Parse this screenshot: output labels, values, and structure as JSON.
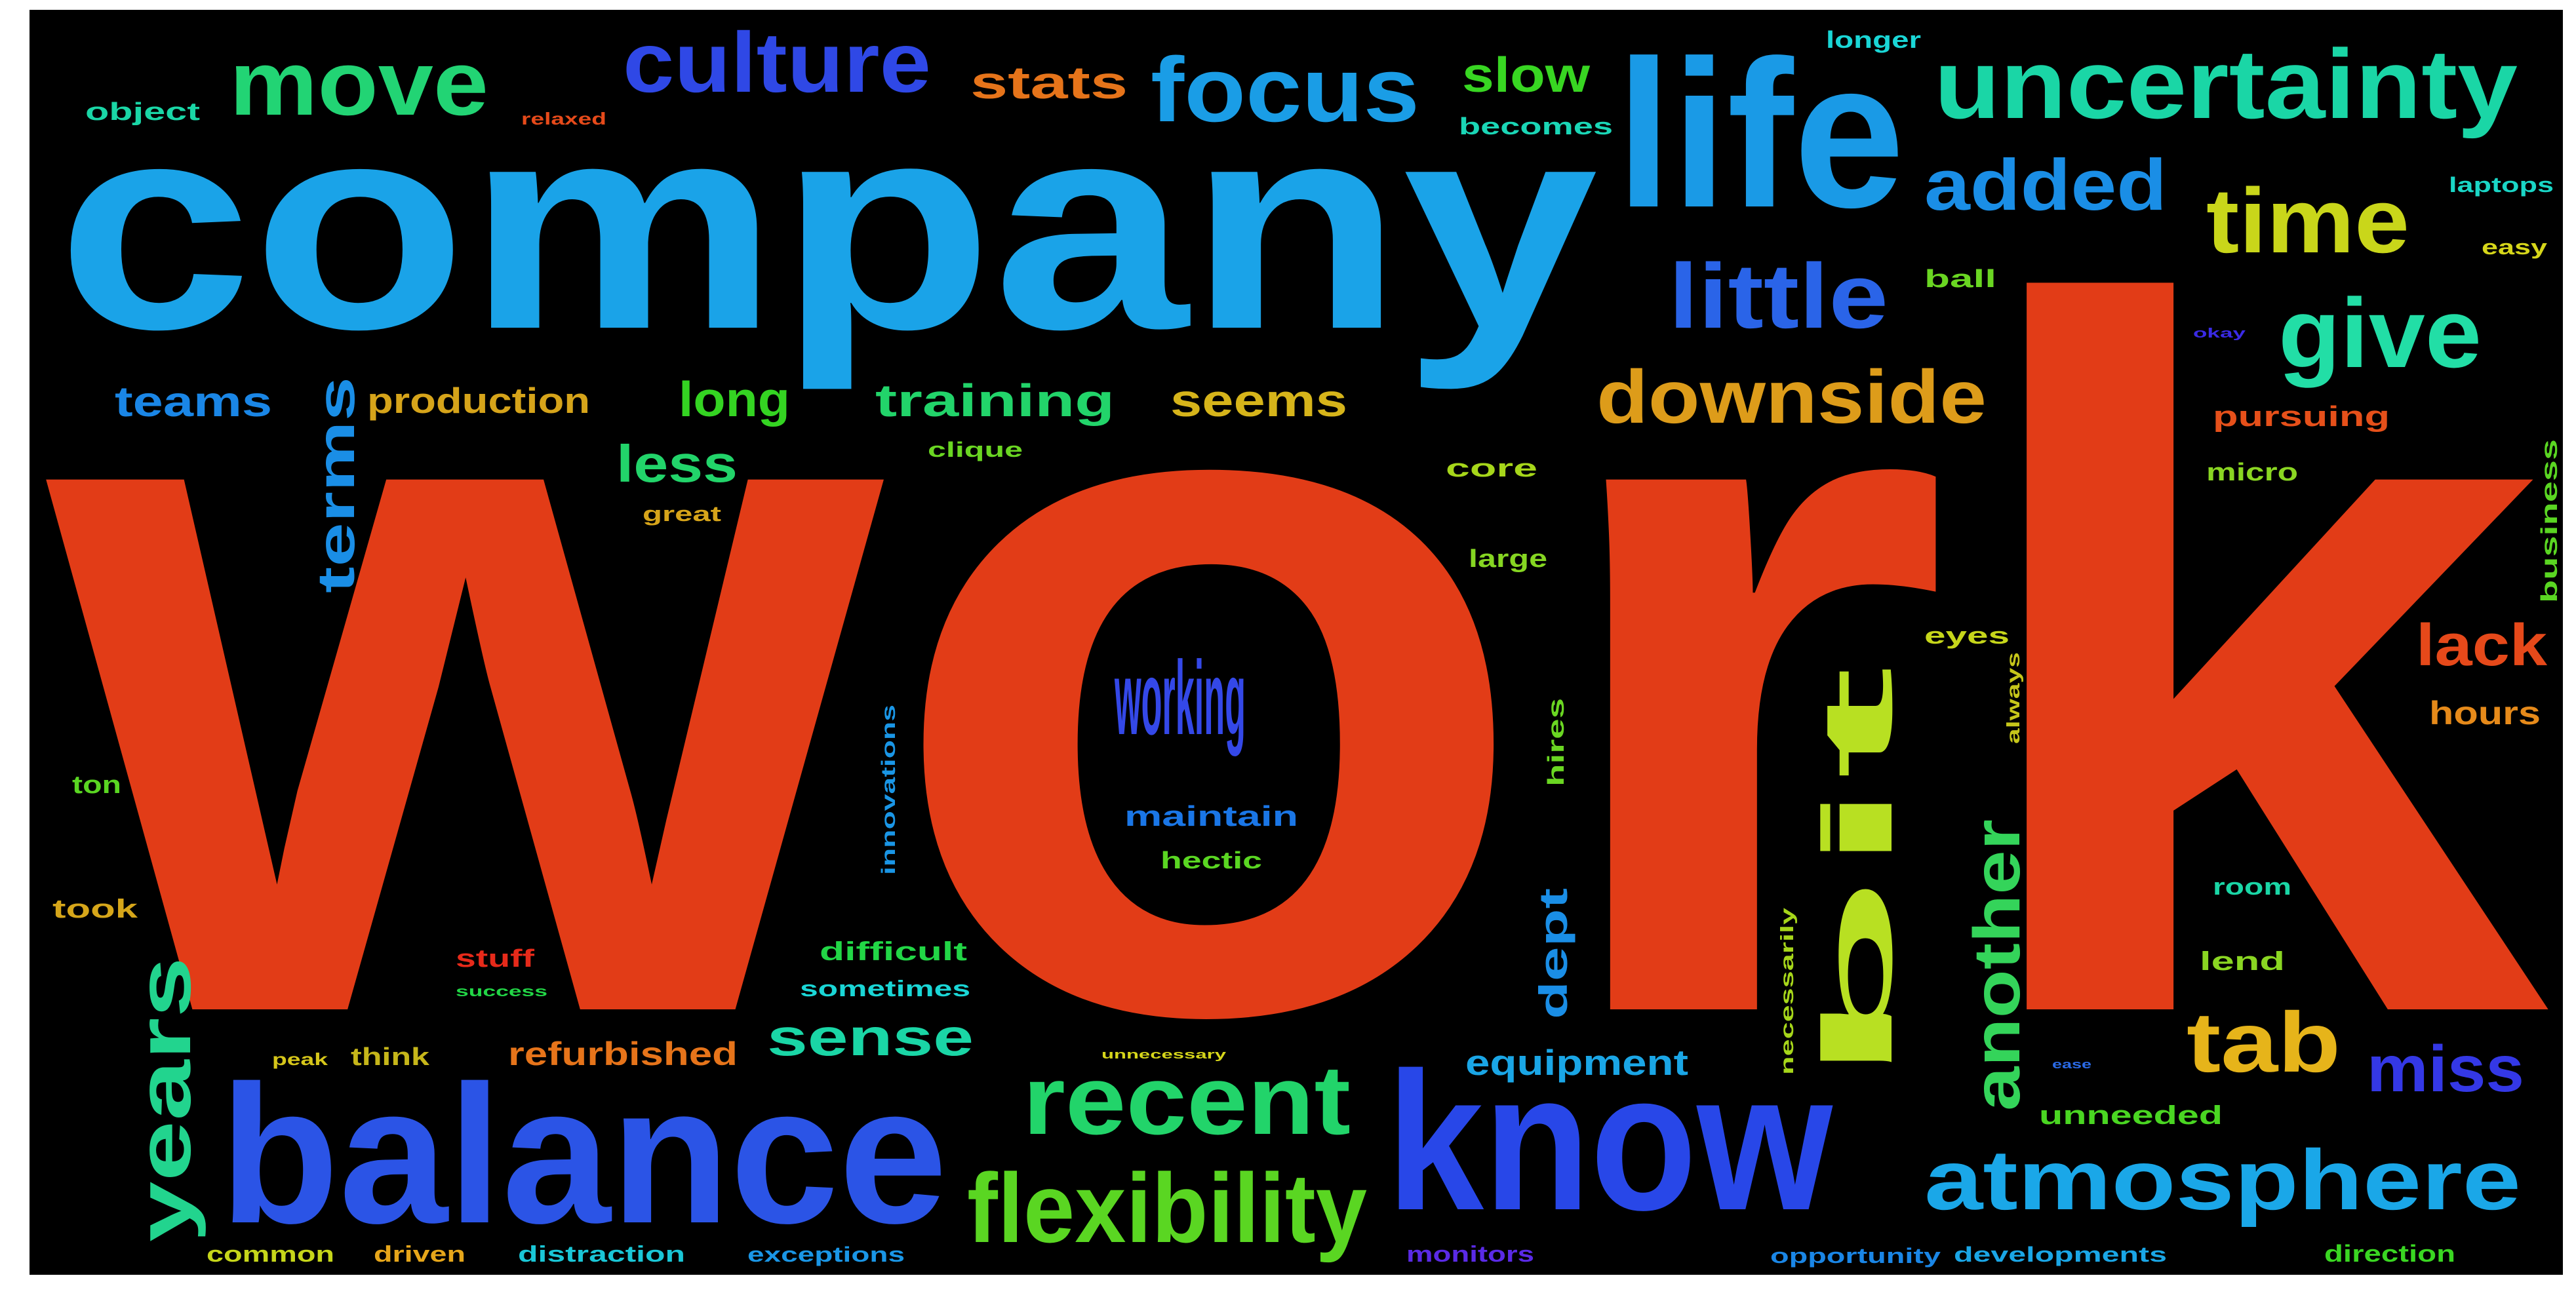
{
  "background_color": "#000000",
  "words": [
    {
      "text": "work",
      "color": "#e23c17"
    },
    {
      "text": "company",
      "color": "#1aa3e8"
    },
    {
      "text": "life",
      "color": "#1a9ae6"
    },
    {
      "text": "balance",
      "color": "#2b54e6"
    },
    {
      "text": "know",
      "color": "#2847e8"
    },
    {
      "text": "uncertainty",
      "color": "#1ad6a6"
    },
    {
      "text": "culture",
      "color": "#2f48e6"
    },
    {
      "text": "move",
      "color": "#22d474"
    },
    {
      "text": "focus",
      "color": "#1a9de6"
    },
    {
      "text": "time",
      "color": "#c9d61a"
    },
    {
      "text": "give",
      "color": "#22dea6"
    },
    {
      "text": "added",
      "color": "#1a8ee6"
    },
    {
      "text": "little",
      "color": "#2a64e8"
    },
    {
      "text": "downside",
      "color": "#dd9c1a"
    },
    {
      "text": "working",
      "color": "#3448e8"
    },
    {
      "text": "bit",
      "color": "#b8e022"
    },
    {
      "text": "recent",
      "color": "#22d46a"
    },
    {
      "text": "flexibility",
      "color": "#5ad622"
    },
    {
      "text": "atmosphere",
      "color": "#1aa7e8"
    },
    {
      "text": "tab",
      "color": "#e6b41a"
    },
    {
      "text": "years",
      "color": "#22d48e"
    },
    {
      "text": "another",
      "color": "#34d45a"
    },
    {
      "text": "miss",
      "color": "#3438e6"
    },
    {
      "text": "lack",
      "color": "#e6491a"
    },
    {
      "text": "sense",
      "color": "#1ad6a6"
    },
    {
      "text": "terms",
      "color": "#1a8ee6"
    },
    {
      "text": "stats",
      "color": "#e6741a"
    },
    {
      "text": "slow",
      "color": "#38d622"
    },
    {
      "text": "training",
      "color": "#22d46a"
    },
    {
      "text": "seems",
      "color": "#d6b41a"
    },
    {
      "text": "long",
      "color": "#34d422"
    },
    {
      "text": "less",
      "color": "#22d46a"
    },
    {
      "text": "teams",
      "color": "#1a86e6"
    },
    {
      "text": "production",
      "color": "#d6a41a"
    },
    {
      "text": "dept",
      "color": "#1a8ee6"
    },
    {
      "text": "equipment",
      "color": "#1aa6e6"
    },
    {
      "text": "refurbished",
      "color": "#e6741a"
    },
    {
      "text": "hours",
      "color": "#e68a1a"
    },
    {
      "text": "object",
      "color": "#1ad6a6"
    },
    {
      "text": "relaxed",
      "color": "#e64a1a"
    },
    {
      "text": "becomes",
      "color": "#1ad6b6"
    },
    {
      "text": "longer",
      "color": "#1ad6d6"
    },
    {
      "text": "laptops",
      "color": "#1ad6c6"
    },
    {
      "text": "easy",
      "color": "#d6d61a"
    },
    {
      "text": "ball",
      "color": "#6ad622"
    },
    {
      "text": "okay",
      "color": "#3a2ae6"
    },
    {
      "text": "pursuing",
      "color": "#e6501a"
    },
    {
      "text": "core",
      "color": "#a6d61a"
    },
    {
      "text": "clique",
      "color": "#6ad622"
    },
    {
      "text": "great",
      "color": "#d6a41a"
    },
    {
      "text": "large",
      "color": "#86d622"
    },
    {
      "text": "micro",
      "color": "#8ad622"
    },
    {
      "text": "business",
      "color": "#5ad622"
    },
    {
      "text": "eyes",
      "color": "#c6d61a"
    },
    {
      "text": "always",
      "color": "#c6c61a"
    },
    {
      "text": "hires",
      "color": "#6ad622"
    },
    {
      "text": "innovations",
      "color": "#1a96e6"
    },
    {
      "text": "maintain",
      "color": "#1a76e6"
    },
    {
      "text": "hectic",
      "color": "#5ad622"
    },
    {
      "text": "ton",
      "color": "#5ad622"
    },
    {
      "text": "took",
      "color": "#d6a61a"
    },
    {
      "text": "stuff",
      "color": "#e62a1a"
    },
    {
      "text": "success",
      "color": "#22d646"
    },
    {
      "text": "difficult",
      "color": "#22d646"
    },
    {
      "text": "sometimes",
      "color": "#1ad6d6"
    },
    {
      "text": "think",
      "color": "#c6b61a"
    },
    {
      "text": "peak",
      "color": "#d6c61a"
    },
    {
      "text": "necessarily",
      "color": "#a6d61a"
    },
    {
      "text": "room",
      "color": "#1ad6a6"
    },
    {
      "text": "lend",
      "color": "#8ad622"
    },
    {
      "text": "unneeded",
      "color": "#4ad622"
    },
    {
      "text": "common",
      "color": "#c6d61a"
    },
    {
      "text": "driven",
      "color": "#e6a61a"
    },
    {
      "text": "distraction",
      "color": "#1ac6d6"
    },
    {
      "text": "exceptions",
      "color": "#1a96e6"
    },
    {
      "text": "monitors",
      "color": "#5a2ae6"
    },
    {
      "text": "opportunity",
      "color": "#1a86e6"
    },
    {
      "text": "developments",
      "color": "#1aa6e6"
    },
    {
      "text": "direction",
      "color": "#3ad622"
    },
    {
      "text": "unnecessary",
      "color": "#d6d61a"
    },
    {
      "text": "ease",
      "color": "#2a6ae6"
    }
  ]
}
